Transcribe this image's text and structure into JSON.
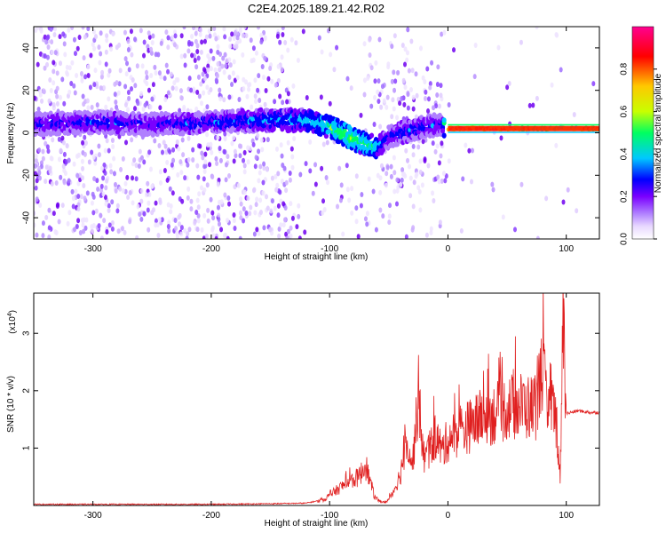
{
  "figure": {
    "title": "C2E4.2025.189.21.42.R02"
  },
  "chart_data": [
    {
      "type": "heatmap",
      "title": "C2E4.2025.189.21.42.R02",
      "xlabel": "Height of straight line (km)",
      "ylabel": "Frequency (Hz)",
      "xlim": [
        -350,
        128
      ],
      "ylim": [
        -50,
        50
      ],
      "x_ticks": [
        -300,
        -200,
        -100,
        0,
        100
      ],
      "y_ticks": [
        -40,
        -20,
        0,
        20,
        40
      ],
      "colorbar": {
        "label": "Normalized spectral amplitude",
        "range": [
          0,
          1
        ],
        "ticks": [
          "0.0",
          "0.2",
          "0.4",
          "0.6",
          "0.8"
        ],
        "colormap": [
          "#e8d8ff",
          "#b080ff",
          "#7a00ff",
          "#0000ff",
          "#00c8ff",
          "#00ff60",
          "#c8ff00",
          "#ffc800",
          "#ff0000",
          "#ff0090"
        ]
      },
      "ridge": {
        "description_points_x": [
          -350,
          -300,
          -250,
          -200,
          -150,
          -120,
          -100,
          -80,
          -60,
          -50,
          -40,
          -20,
          -5,
          0,
          50,
          90,
          128
        ],
        "description_points_freq": [
          4,
          5,
          4,
          5,
          6,
          6,
          3,
          -3,
          -7,
          -2,
          0,
          3,
          4,
          2,
          2,
          2,
          2
        ],
        "description_points_amplitude": [
          0.3,
          0.35,
          0.3,
          0.35,
          0.4,
          0.45,
          0.55,
          0.6,
          0.5,
          0.3,
          0.35,
          0.35,
          0.3,
          0.95,
          0.95,
          0.7,
          0.9
        ]
      }
    },
    {
      "type": "line",
      "xlabel": "Height of straight line (km)",
      "ylabel": "SNR (10 * v/v)",
      "y_multiplier_label": "(x10",
      "y_multiplier_exp": "4",
      "xlim": [
        -350,
        128
      ],
      "ylim": [
        0,
        3.7
      ],
      "x_ticks": [
        -300,
        -200,
        -100,
        0,
        100
      ],
      "y_ticks": [
        1,
        2,
        3
      ],
      "series": [
        {
          "color": "#e02020",
          "x": [
            -350,
            -300,
            -200,
            -150,
            -120,
            -105,
            -95,
            -85,
            -75,
            -70,
            -66,
            -62,
            -58,
            -54,
            -50,
            -45,
            -40,
            -35,
            -30,
            -25,
            -20,
            -15,
            -10,
            -5,
            0,
            10,
            20,
            30,
            40,
            50,
            60,
            70,
            75,
            80,
            84,
            88,
            92,
            95,
            97,
            100,
            110,
            120,
            128
          ],
          "y": [
            0.02,
            0.02,
            0.02,
            0.03,
            0.04,
            0.1,
            0.25,
            0.4,
            0.5,
            0.7,
            0.45,
            0.15,
            0.08,
            0.05,
            0.1,
            0.3,
            0.55,
            1.2,
            0.7,
            1.85,
            0.8,
            1.0,
            1.2,
            0.95,
            1.15,
            1.3,
            1.4,
            1.55,
            1.6,
            1.7,
            1.75,
            1.7,
            1.75,
            2.5,
            1.5,
            1.8,
            1.4,
            0.4,
            3.7,
            1.6,
            1.65,
            1.62,
            1.62
          ]
        }
      ]
    }
  ]
}
